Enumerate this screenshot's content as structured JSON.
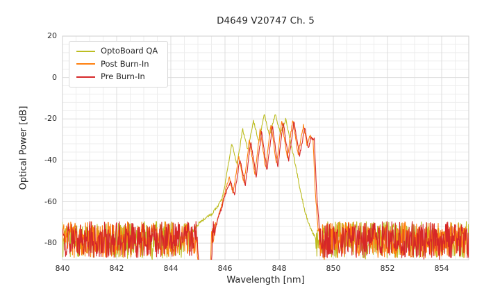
{
  "chart_data": {
    "type": "line",
    "title": "D4649 V20747 Ch. 5",
    "xlabel": "Wavelength [nm]",
    "ylabel": "Optical Power [dB]",
    "xlim": [
      840,
      855
    ],
    "ylim": [
      -88,
      20
    ],
    "xticks": [
      840,
      842,
      844,
      846,
      848,
      850,
      852,
      854
    ],
    "yticks": [
      20,
      0,
      -20,
      -40,
      -60,
      -80
    ],
    "grid": true,
    "legend_position": "upper left",
    "noise_floor": {
      "top_db": -69.5,
      "depth_db": 17.5
    },
    "series": [
      {
        "name": "OptoBoard QA",
        "color": "#bcbd22",
        "quiet_ranges": [
          [
            844.7,
            849.35
          ]
        ],
        "envelope": [
          [
            844.7,
            -76
          ],
          [
            845.0,
            -71
          ],
          [
            845.25,
            -68
          ],
          [
            845.5,
            -66
          ],
          [
            845.7,
            -63
          ],
          [
            845.9,
            -58
          ],
          [
            846.05,
            -48
          ],
          [
            846.25,
            -32
          ],
          [
            846.45,
            -42
          ],
          [
            846.65,
            -25
          ],
          [
            846.85,
            -35
          ],
          [
            847.05,
            -21
          ],
          [
            847.25,
            -31
          ],
          [
            847.45,
            -18
          ],
          [
            847.65,
            -28
          ],
          [
            847.85,
            -17.5
          ],
          [
            848.05,
            -27
          ],
          [
            848.25,
            -20
          ],
          [
            848.45,
            -33
          ],
          [
            848.6,
            -42
          ],
          [
            848.8,
            -56
          ],
          [
            849.0,
            -67
          ],
          [
            849.2,
            -74
          ],
          [
            849.35,
            -78
          ]
        ]
      },
      {
        "name": "Post Burn-In",
        "color": "#ff7f0e",
        "quiet_ranges": [
          [
            844.96,
            845.48
          ]
        ],
        "envelope": [
          [
            844.9,
            -78
          ],
          [
            844.98,
            -86
          ],
          [
            845.04,
            -93
          ],
          [
            845.44,
            -93
          ],
          [
            845.52,
            -82
          ],
          [
            845.66,
            -72
          ],
          [
            845.8,
            -65
          ],
          [
            845.95,
            -58
          ],
          [
            846.15,
            -48
          ],
          [
            846.3,
            -56
          ],
          [
            846.5,
            -38
          ],
          [
            846.7,
            -51
          ],
          [
            846.9,
            -30
          ],
          [
            847.1,
            -47
          ],
          [
            847.3,
            -25
          ],
          [
            847.5,
            -44
          ],
          [
            847.7,
            -22
          ],
          [
            847.9,
            -42
          ],
          [
            848.1,
            -21
          ],
          [
            848.3,
            -39
          ],
          [
            848.5,
            -20.5
          ],
          [
            848.7,
            -37
          ],
          [
            848.9,
            -23
          ],
          [
            849.03,
            -33
          ],
          [
            849.13,
            -28
          ],
          [
            849.25,
            -30
          ],
          [
            849.33,
            -54
          ],
          [
            849.45,
            -76
          ]
        ]
      },
      {
        "name": "Pre Burn-In",
        "color": "#d62728",
        "quiet_ranges": [
          [
            845.0,
            845.52
          ]
        ],
        "envelope": [
          [
            844.9,
            -78
          ],
          [
            845.0,
            -85
          ],
          [
            845.06,
            -93
          ],
          [
            845.48,
            -93
          ],
          [
            845.55,
            -80
          ],
          [
            845.7,
            -70
          ],
          [
            845.85,
            -64
          ],
          [
            846.0,
            -57
          ],
          [
            846.2,
            -50
          ],
          [
            846.35,
            -57
          ],
          [
            846.55,
            -39
          ],
          [
            846.75,
            -52
          ],
          [
            846.95,
            -31
          ],
          [
            847.15,
            -48
          ],
          [
            847.35,
            -26
          ],
          [
            847.55,
            -45
          ],
          [
            847.75,
            -23
          ],
          [
            847.95,
            -43
          ],
          [
            848.15,
            -21.5
          ],
          [
            848.35,
            -40
          ],
          [
            848.55,
            -21
          ],
          [
            848.75,
            -38
          ],
          [
            848.95,
            -24
          ],
          [
            849.08,
            -34
          ],
          [
            849.18,
            -29
          ],
          [
            849.3,
            -30
          ],
          [
            849.38,
            -55
          ],
          [
            849.5,
            -76
          ]
        ]
      }
    ]
  }
}
